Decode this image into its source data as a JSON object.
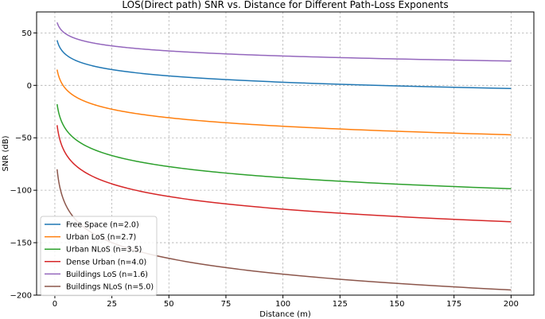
{
  "chart_data": {
    "type": "line",
    "title": "LOS(Direct path) SNR vs. Distance for Different Path-Loss Exponents",
    "xlabel": "Distance (m)",
    "ylabel": "SNR (dB)",
    "xlim": [
      -8,
      210
    ],
    "ylim": [
      -200,
      70
    ],
    "xticks": [
      0,
      25,
      50,
      75,
      100,
      125,
      150,
      175,
      200
    ],
    "yticks": [
      -200,
      -150,
      -100,
      -50,
      0,
      50
    ],
    "grid": true,
    "legend_position": "lower-left",
    "x_range": [
      1,
      200
    ],
    "model": "SNR = snr_at_1m - 10 * n * log10(d)",
    "series": [
      {
        "name": "Free Space (n=2.0)",
        "n": 2.0,
        "snr_at_1m": 43,
        "color": "#1f77b4"
      },
      {
        "name": "Urban LoS (n=2.7)",
        "n": 2.7,
        "snr_at_1m": 15,
        "color": "#ff7f0e"
      },
      {
        "name": "Urban NLoS (n=3.5)",
        "n": 3.5,
        "snr_at_1m": -18,
        "color": "#2ca02c"
      },
      {
        "name": "Dense Urban (n=4.0)",
        "n": 4.0,
        "snr_at_1m": -38,
        "color": "#d62728"
      },
      {
        "name": "Buildings LoS (n=1.6)",
        "n": 1.6,
        "snr_at_1m": 60,
        "color": "#9467bd"
      },
      {
        "name": "Buildings NLoS (n=5.0)",
        "n": 5.0,
        "snr_at_1m": -80,
        "color": "#8c564b"
      }
    ]
  }
}
